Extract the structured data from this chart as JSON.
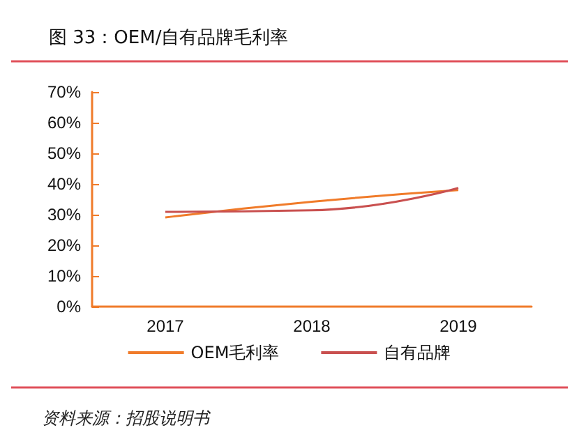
{
  "chart_data": {
    "type": "line",
    "title": "图 33：OEM/自有品牌毛利率",
    "categories": [
      "2017",
      "2018",
      "2019"
    ],
    "series": [
      {
        "name": "OEM毛利率",
        "color": "#f07b2a",
        "values": [
          29.1,
          34.2,
          38.0
        ]
      },
      {
        "name": "自有品牌",
        "color": "#c9504f",
        "values": [
          30.9,
          31.4,
          38.7
        ]
      }
    ],
    "ylim": [
      0,
      70
    ],
    "yticks": [
      {
        "value": 0,
        "label": "0%"
      },
      {
        "value": 10,
        "label": "10%"
      },
      {
        "value": 20,
        "label": "20%"
      },
      {
        "value": 30,
        "label": "30%"
      },
      {
        "value": 40,
        "label": "40%"
      },
      {
        "value": 50,
        "label": "50%"
      },
      {
        "value": 60,
        "label": "60%"
      },
      {
        "value": 70,
        "label": "70%"
      }
    ],
    "grid": false,
    "legend": "bottom",
    "marker": "none",
    "line_style": "solid",
    "annotations": [
      "资料来源：招股说明书"
    ]
  }
}
